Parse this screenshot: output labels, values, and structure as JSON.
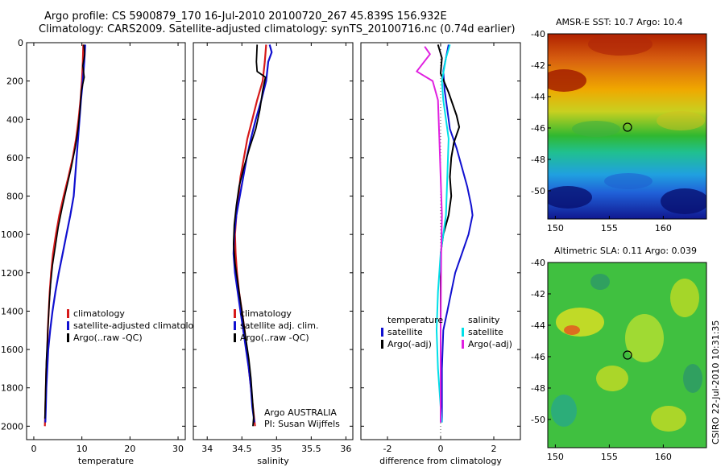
{
  "header": {
    "title_line1": "Argo profile: CS 5900879_170 16-Jul-2010 20100720_267 45.839S 156.932E",
    "title_line2": "Climatology: CARS2009. Satellite-adjusted climatology: synTS_20100716.nc (0.74d earlier)"
  },
  "colors": {
    "climatology": "#d61a1a",
    "satellite": "#1010d0",
    "argo": "#000000",
    "cyan": "#00e0e8",
    "magenta": "#e020e0"
  },
  "chart_data": [
    {
      "id": "temperature",
      "type": "line",
      "xlabel": "temperature",
      "xlim": [
        -1.5,
        31.5
      ],
      "xticks": [
        0,
        10,
        20,
        30
      ],
      "ylim": [
        2070,
        0
      ],
      "yticks": [
        0,
        200,
        400,
        600,
        800,
        1000,
        1200,
        1400,
        1600,
        1800,
        2000
      ],
      "legend": {
        "position": "lower-right",
        "entries": [
          {
            "label": "climatology",
            "color": "#d61a1a"
          },
          {
            "label": "satellite-adjusted climatology",
            "color": "#1010d0"
          },
          {
            "label": "Argo(..raw -QC)",
            "color": "#000000"
          }
        ]
      },
      "series": [
        {
          "name": "climatology",
          "color": "#d61a1a",
          "width": 2.2,
          "points": [
            [
              10.3,
              10
            ],
            [
              10.2,
              100
            ],
            [
              10.0,
              200
            ],
            [
              9.7,
              300
            ],
            [
              9.3,
              400
            ],
            [
              8.8,
              500
            ],
            [
              8.1,
              600
            ],
            [
              7.2,
              700
            ],
            [
              6.2,
              800
            ],
            [
              5.3,
              900
            ],
            [
              4.6,
              1000
            ],
            [
              4.0,
              1100
            ],
            [
              3.6,
              1200
            ],
            [
              3.3,
              1300
            ],
            [
              3.1,
              1400
            ],
            [
              2.9,
              1500
            ],
            [
              2.8,
              1600
            ],
            [
              2.6,
              1700
            ],
            [
              2.5,
              1800
            ],
            [
              2.4,
              1900
            ],
            [
              2.3,
              2000
            ]
          ]
        },
        {
          "name": "satellite-adjusted climatology",
          "color": "#1010d0",
          "width": 2.2,
          "points": [
            [
              10.7,
              10
            ],
            [
              10.5,
              100
            ],
            [
              10.2,
              200
            ],
            [
              9.8,
              300
            ],
            [
              9.5,
              400
            ],
            [
              9.2,
              500
            ],
            [
              8.9,
              600
            ],
            [
              8.6,
              700
            ],
            [
              8.3,
              800
            ],
            [
              7.6,
              900
            ],
            [
              6.8,
              1000
            ],
            [
              6.0,
              1100
            ],
            [
              5.2,
              1200
            ],
            [
              4.5,
              1300
            ],
            [
              3.9,
              1400
            ],
            [
              3.4,
              1500
            ],
            [
              3.0,
              1600
            ],
            [
              2.8,
              1700
            ],
            [
              2.6,
              1800
            ],
            [
              2.5,
              1900
            ],
            [
              2.4,
              1980
            ]
          ]
        },
        {
          "name": "Argo(..raw -QC)",
          "color": "#000000",
          "width": 1.6,
          "points": [
            [
              10.4,
              10
            ],
            [
              10.6,
              60
            ],
            [
              10.2,
              120
            ],
            [
              10.5,
              180
            ],
            [
              9.9,
              250
            ],
            [
              9.6,
              350
            ],
            [
              9.2,
              450
            ],
            [
              8.6,
              550
            ],
            [
              7.8,
              650
            ],
            [
              6.8,
              760
            ],
            [
              5.9,
              860
            ],
            [
              5.1,
              960
            ],
            [
              4.5,
              1060
            ],
            [
              3.9,
              1160
            ],
            [
              3.5,
              1260
            ],
            [
              3.2,
              1360
            ],
            [
              3.0,
              1460
            ],
            [
              2.8,
              1560
            ],
            [
              2.6,
              1660
            ],
            [
              2.5,
              1760
            ],
            [
              2.4,
              1860
            ],
            [
              2.3,
              1960
            ]
          ]
        }
      ]
    },
    {
      "id": "salinity",
      "type": "line",
      "xlabel": "salinity",
      "xlim": [
        33.8,
        36.1
      ],
      "xticks": [
        34,
        34.5,
        35,
        35.5,
        36
      ],
      "ylim": [
        2070,
        0
      ],
      "legend": {
        "position": "lower-right",
        "entries": [
          {
            "label": "climatology",
            "color": "#d61a1a"
          },
          {
            "label": "satellite adj. clim.",
            "color": "#1010d0"
          },
          {
            "label": "Argo(..raw -QC)",
            "color": "#000000"
          }
        ]
      },
      "annotation": [
        "Argo AUSTRALIA",
        "PI: Susan Wijffels"
      ],
      "series": [
        {
          "name": "climatology",
          "color": "#d61a1a",
          "width": 2.2,
          "points": [
            [
              34.85,
              10
            ],
            [
              34.83,
              100
            ],
            [
              34.8,
              200
            ],
            [
              34.72,
              300
            ],
            [
              34.65,
              400
            ],
            [
              34.58,
              500
            ],
            [
              34.53,
              600
            ],
            [
              34.48,
              700
            ],
            [
              34.45,
              800
            ],
            [
              34.42,
              900
            ],
            [
              34.4,
              1000
            ],
            [
              34.41,
              1100
            ],
            [
              34.43,
              1200
            ],
            [
              34.46,
              1300
            ],
            [
              34.5,
              1400
            ],
            [
              34.54,
              1500
            ],
            [
              34.57,
              1600
            ],
            [
              34.6,
              1700
            ],
            [
              34.63,
              1800
            ],
            [
              34.66,
              1900
            ],
            [
              34.69,
              2000
            ]
          ]
        },
        {
          "name": "satellite adj. clim.",
          "color": "#1010d0",
          "width": 2.2,
          "points": [
            [
              34.9,
              10
            ],
            [
              34.93,
              50
            ],
            [
              34.88,
              100
            ],
            [
              34.85,
              200
            ],
            [
              34.78,
              300
            ],
            [
              34.7,
              400
            ],
            [
              34.63,
              500
            ],
            [
              34.57,
              600
            ],
            [
              34.52,
              700
            ],
            [
              34.47,
              800
            ],
            [
              34.42,
              900
            ],
            [
              34.39,
              1000
            ],
            [
              34.38,
              1100
            ],
            [
              34.4,
              1200
            ],
            [
              34.44,
              1300
            ],
            [
              34.48,
              1400
            ],
            [
              34.52,
              1500
            ],
            [
              34.56,
              1600
            ],
            [
              34.6,
              1700
            ],
            [
              34.63,
              1800
            ],
            [
              34.65,
              1900
            ],
            [
              34.68,
              1980
            ]
          ]
        },
        {
          "name": "Argo(..raw -QC)",
          "color": "#000000",
          "width": 1.8,
          "points": [
            [
              34.72,
              10
            ],
            [
              34.71,
              100
            ],
            [
              34.72,
              150
            ],
            [
              34.84,
              180
            ],
            [
              34.8,
              250
            ],
            [
              34.76,
              350
            ],
            [
              34.7,
              450
            ],
            [
              34.61,
              550
            ],
            [
              34.53,
              650
            ],
            [
              34.46,
              750
            ],
            [
              34.42,
              850
            ],
            [
              34.39,
              950
            ],
            [
              34.38,
              1050
            ],
            [
              34.4,
              1150
            ],
            [
              34.44,
              1250
            ],
            [
              34.48,
              1350
            ],
            [
              34.52,
              1450
            ],
            [
              34.56,
              1550
            ],
            [
              34.6,
              1650
            ],
            [
              34.63,
              1750
            ],
            [
              34.65,
              1850
            ],
            [
              34.67,
              1950
            ],
            [
              34.66,
              2000
            ]
          ]
        }
      ]
    },
    {
      "id": "difference",
      "type": "line",
      "xlabel": "difference from climatology",
      "xlim": [
        -3.0,
        3.0
      ],
      "xticks": [
        -2,
        0,
        2
      ],
      "ylim": [
        2070,
        0
      ],
      "legend": {
        "position": "lower",
        "columns": [
          {
            "header": "temperature",
            "entries": [
              {
                "label": "satellite",
                "color": "#1010d0"
              },
              {
                "label": "Argo(-adj)",
                "color": "#000000"
              }
            ]
          },
          {
            "header": "salinity",
            "entries": [
              {
                "label": "satellite",
                "color": "#00e0e8"
              },
              {
                "label": "Argo(-adj)",
                "color": "#e020e0"
              }
            ]
          }
        ]
      },
      "series": [
        {
          "name": "temperature satellite",
          "color": "#1010d0",
          "width": 2.0,
          "points": [
            [
              0.3,
              10
            ],
            [
              0.2,
              80
            ],
            [
              0.1,
              150
            ],
            [
              0.15,
              250
            ],
            [
              0.25,
              350
            ],
            [
              0.35,
              450
            ],
            [
              0.6,
              550
            ],
            [
              0.8,
              650
            ],
            [
              1.0,
              750
            ],
            [
              1.15,
              850
            ],
            [
              1.2,
              900
            ],
            [
              1.05,
              1000
            ],
            [
              0.8,
              1100
            ],
            [
              0.55,
              1200
            ],
            [
              0.4,
              1300
            ],
            [
              0.25,
              1400
            ],
            [
              0.1,
              1500
            ],
            [
              0.05,
              1700
            ],
            [
              0.05,
              1980
            ]
          ]
        },
        {
          "name": "temperature Argo(-adj)",
          "color": "#000000",
          "width": 2.0,
          "points": [
            [
              -0.1,
              10
            ],
            [
              0.05,
              80
            ],
            [
              0.0,
              160
            ],
            [
              0.3,
              260
            ],
            [
              0.6,
              380
            ],
            [
              0.7,
              440
            ],
            [
              0.5,
              520
            ],
            [
              0.4,
              600
            ],
            [
              0.35,
              700
            ],
            [
              0.4,
              800
            ],
            [
              0.3,
              900
            ],
            [
              0.1,
              1000
            ],
            [
              0.0,
              1100
            ],
            [
              0.0,
              1500
            ],
            [
              0.0,
              1980
            ]
          ]
        },
        {
          "name": "salinity satellite",
          "color": "#00e0e8",
          "width": 2.0,
          "points": [
            [
              0.35,
              10
            ],
            [
              0.2,
              80
            ],
            [
              0.05,
              200
            ],
            [
              0.1,
              300
            ],
            [
              0.2,
              400
            ],
            [
              0.3,
              500
            ],
            [
              0.25,
              700
            ],
            [
              0.2,
              900
            ],
            [
              0.0,
              1100
            ],
            [
              -0.1,
              1300
            ],
            [
              -0.15,
              1500
            ],
            [
              -0.1,
              1700
            ],
            [
              0.0,
              1900
            ],
            [
              0.05,
              1980
            ]
          ]
        },
        {
          "name": "salinity Argo(-adj)",
          "color": "#e020e0",
          "width": 2.0,
          "points": [
            [
              -0.6,
              20
            ],
            [
              -0.4,
              60
            ],
            [
              -0.9,
              150
            ],
            [
              -0.3,
              200
            ],
            [
              -0.1,
              300
            ],
            [
              -0.05,
              500
            ],
            [
              0.0,
              700
            ],
            [
              0.05,
              900
            ],
            [
              0.02,
              1100
            ],
            [
              0.0,
              1500
            ],
            [
              0.0,
              1980
            ]
          ]
        }
      ]
    }
  ],
  "maps": [
    {
      "id": "sst",
      "title": "AMSR-E SST: 10.7 Argo: 10.4",
      "yticks": [
        "-40",
        "-42",
        "-44",
        "-46",
        "-48",
        "-50"
      ],
      "xticks": [
        "150",
        "155",
        "160"
      ]
    },
    {
      "id": "sla",
      "title": "Altimetric SLA: 0.11 Argo: 0.039",
      "yticks": [
        "-40",
        "-42",
        "-44",
        "-46",
        "-48",
        "-50"
      ],
      "xticks": [
        "150",
        "155",
        "160"
      ]
    }
  ],
  "credit": "CSIRO 22-Jul-2010 10:31:35"
}
